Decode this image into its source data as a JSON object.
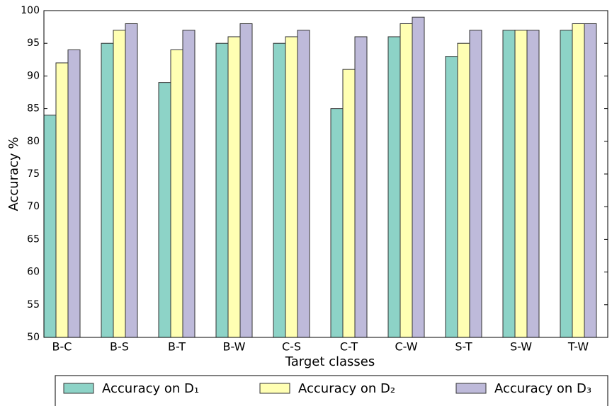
{
  "chart_data": {
    "type": "bar",
    "x_label": "Target classes",
    "y_label": "Accuracy %",
    "categories": [
      "B-C",
      "B-S",
      "B-T",
      "B-W",
      "C-S",
      "C-T",
      "C-W",
      "S-T",
      "S-W",
      "T-W"
    ],
    "series": [
      {
        "name": "Accuracy on D₁",
        "color": "#8dd3c7",
        "values": [
          84,
          95,
          89,
          95,
          95,
          85,
          96,
          93,
          97,
          97
        ]
      },
      {
        "name": "Accuracy on D₂",
        "color": "#ffffb3",
        "values": [
          92,
          97,
          94,
          96,
          96,
          91,
          98,
          95,
          97,
          98
        ]
      },
      {
        "name": "Accuracy on D₃",
        "color": "#bebada",
        "values": [
          94,
          98,
          97,
          98,
          97,
          96,
          99,
          97,
          97,
          98
        ]
      }
    ],
    "ylim": [
      50,
      100
    ],
    "yticks": [
      50,
      55,
      60,
      65,
      70,
      75,
      80,
      85,
      90,
      95,
      100
    ],
    "legend": "bottom"
  }
}
